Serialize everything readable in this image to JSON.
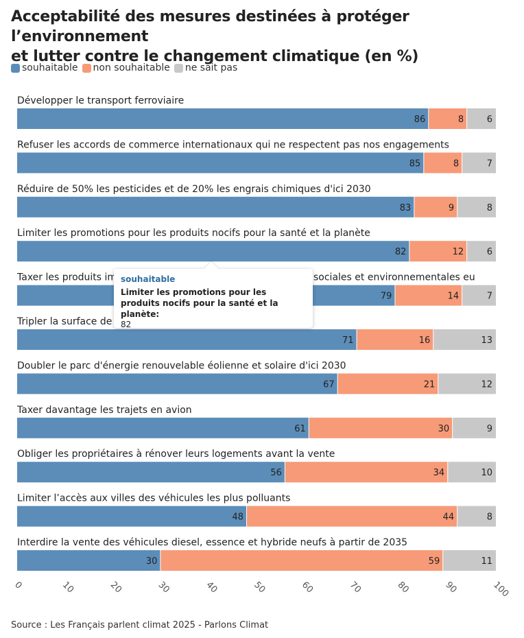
{
  "title_lines": [
    "Acceptabilité des mesures destinées à protéger l’environnement",
    "et lutter contre le changement climatique (en %)"
  ],
  "legend": [
    {
      "label": "souhaitable",
      "color": "#5b8db8"
    },
    {
      "label": "non souhaitable",
      "color": "#f79a77"
    },
    {
      "label": "ne sait pas",
      "color": "#c8c8c8"
    }
  ],
  "source": "Source : Les Français parlent climat 2025 - Parlons Climat",
  "tooltip": {
    "series": "souhaitable",
    "label": "Limiter les promotions pour les produits nocifs pour la santé et la planète:",
    "value": "82"
  },
  "chart_data": {
    "type": "bar",
    "orientation": "horizontal",
    "stacked": true,
    "title": "Acceptabilité des mesures destinées à protéger l’environnement et lutter contre le changement climatique (en %)",
    "xlim": [
      0,
      100
    ],
    "xticks": [
      "0",
      "10",
      "20",
      "30",
      "40",
      "50",
      "60",
      "70",
      "80",
      "90",
      "100"
    ],
    "categories": [
      "Développer le transport ferroviaire",
      "Refuser les accords de commerce internationaux qui ne respectent pas nos engagements",
      "Réduire de 50% les pesticides et de 20% les engrais chimiques d'ici 2030",
      "Limiter les promotions pour les produits nocifs pour la santé et la planète",
      "Taxer les produits importés qui ne respectent pas les normes sociales et environnementales eu",
      "Tripler la surface de l'agriculture biologique d'ici à 2030",
      "Doubler le parc d'énergie renouvelable éolienne et solaire d'ici 2030",
      "Taxer davantage les trajets en avion",
      "Obliger les propriétaires à rénover leurs logements avant la vente",
      "Limiter l’accès aux villes des véhicules les plus polluants",
      "Interdire la vente des véhicules diesel, essence et hybride neufs à partir de 2035"
    ],
    "series": [
      {
        "name": "souhaitable",
        "color": "#5b8db8",
        "values": [
          86,
          85,
          83,
          82,
          79,
          71,
          67,
          61,
          56,
          48,
          30
        ]
      },
      {
        "name": "non souhaitable",
        "color": "#f79a77",
        "values": [
          8,
          8,
          9,
          12,
          14,
          16,
          21,
          30,
          34,
          44,
          59
        ]
      },
      {
        "name": "ne sait pas",
        "color": "#c8c8c8",
        "values": [
          6,
          7,
          8,
          6,
          7,
          13,
          12,
          9,
          10,
          8,
          11
        ]
      }
    ]
  }
}
